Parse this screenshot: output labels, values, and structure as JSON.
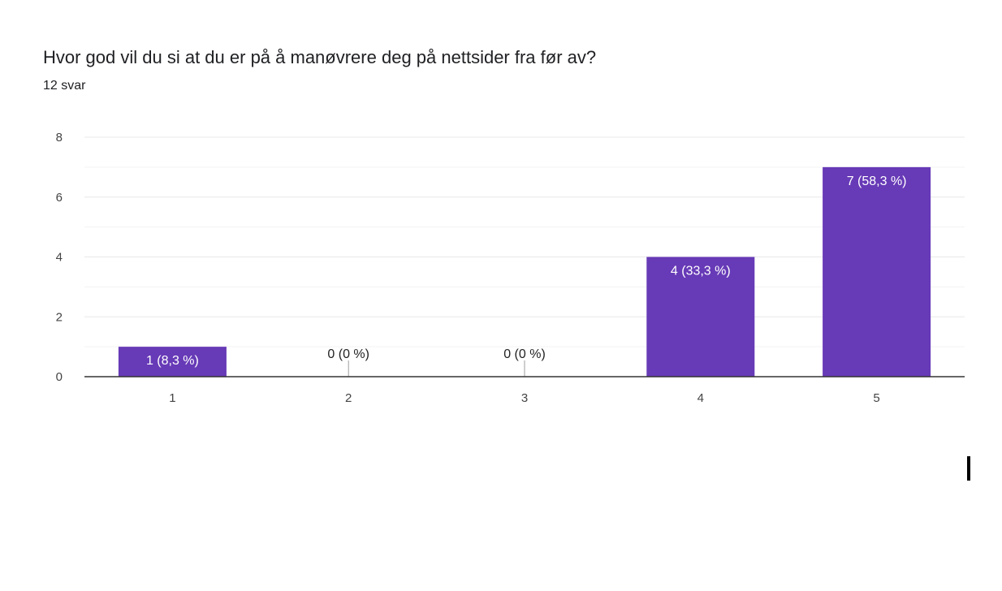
{
  "question": {
    "title": "Hvor god vil du si at du er på å manøvrere deg på nettsider fra før av?",
    "response_count": "12 svar"
  },
  "chart_data": {
    "type": "bar",
    "categories": [
      "1",
      "2",
      "3",
      "4",
      "5"
    ],
    "values": [
      1,
      0,
      0,
      4,
      7
    ],
    "data_labels": [
      "1 (8,3 %)",
      "0 (0 %)",
      "0 (0 %)",
      "4 (33,3 %)",
      "7 (58,3 %)"
    ],
    "y_ticks": [
      0,
      2,
      4,
      6,
      8
    ],
    "ylim": [
      0,
      8
    ],
    "grid": true,
    "legend": "none"
  },
  "colors": {
    "bar": "#673ab7",
    "gridline": "#e8e8e8",
    "axis": "#333333",
    "label_on_bar": "#ffffff",
    "label_outside": "#222222"
  }
}
